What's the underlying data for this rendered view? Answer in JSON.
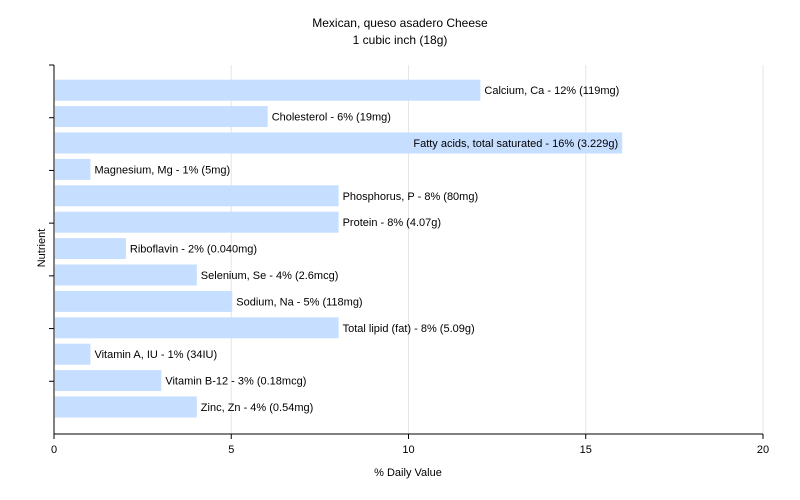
{
  "chart_data": {
    "type": "bar",
    "orientation": "horizontal",
    "title": "Mexican, queso asadero Cheese",
    "subtitle": "1 cubic inch (18g)",
    "xlabel": "% Daily Value",
    "ylabel": "Nutrient",
    "xlim": [
      0,
      20
    ],
    "xticks": [
      0,
      5,
      10,
      15,
      20
    ],
    "grid": true,
    "bar_color": "#c6deff",
    "categories": [
      "Calcium, Ca",
      "Cholesterol",
      "Fatty acids, total saturated",
      "Magnesium, Mg",
      "Phosphorus, P",
      "Protein",
      "Riboflavin",
      "Selenium, Se",
      "Sodium, Na",
      "Total lipid (fat)",
      "Vitamin A, IU",
      "Vitamin B-12",
      "Zinc, Zn"
    ],
    "values": [
      12,
      6,
      16,
      1,
      8,
      8,
      2,
      4,
      5,
      8,
      1,
      3,
      4
    ],
    "labels": [
      "Calcium, Ca - 12% (119mg)",
      "Cholesterol - 6% (19mg)",
      "Fatty acids, total saturated - 16% (3.229g)",
      "Magnesium, Mg - 1% (5mg)",
      "Phosphorus, P - 8% (80mg)",
      "Protein - 8% (4.07g)",
      "Riboflavin - 2% (0.040mg)",
      "Selenium, Se - 4% (2.6mcg)",
      "Sodium, Na - 5% (118mg)",
      "Total lipid (fat) - 8% (5.09g)",
      "Vitamin A, IU - 1% (34IU)",
      "Vitamin B-12 - 3% (0.18mcg)",
      "Zinc, Zn - 4% (0.54mg)"
    ]
  }
}
